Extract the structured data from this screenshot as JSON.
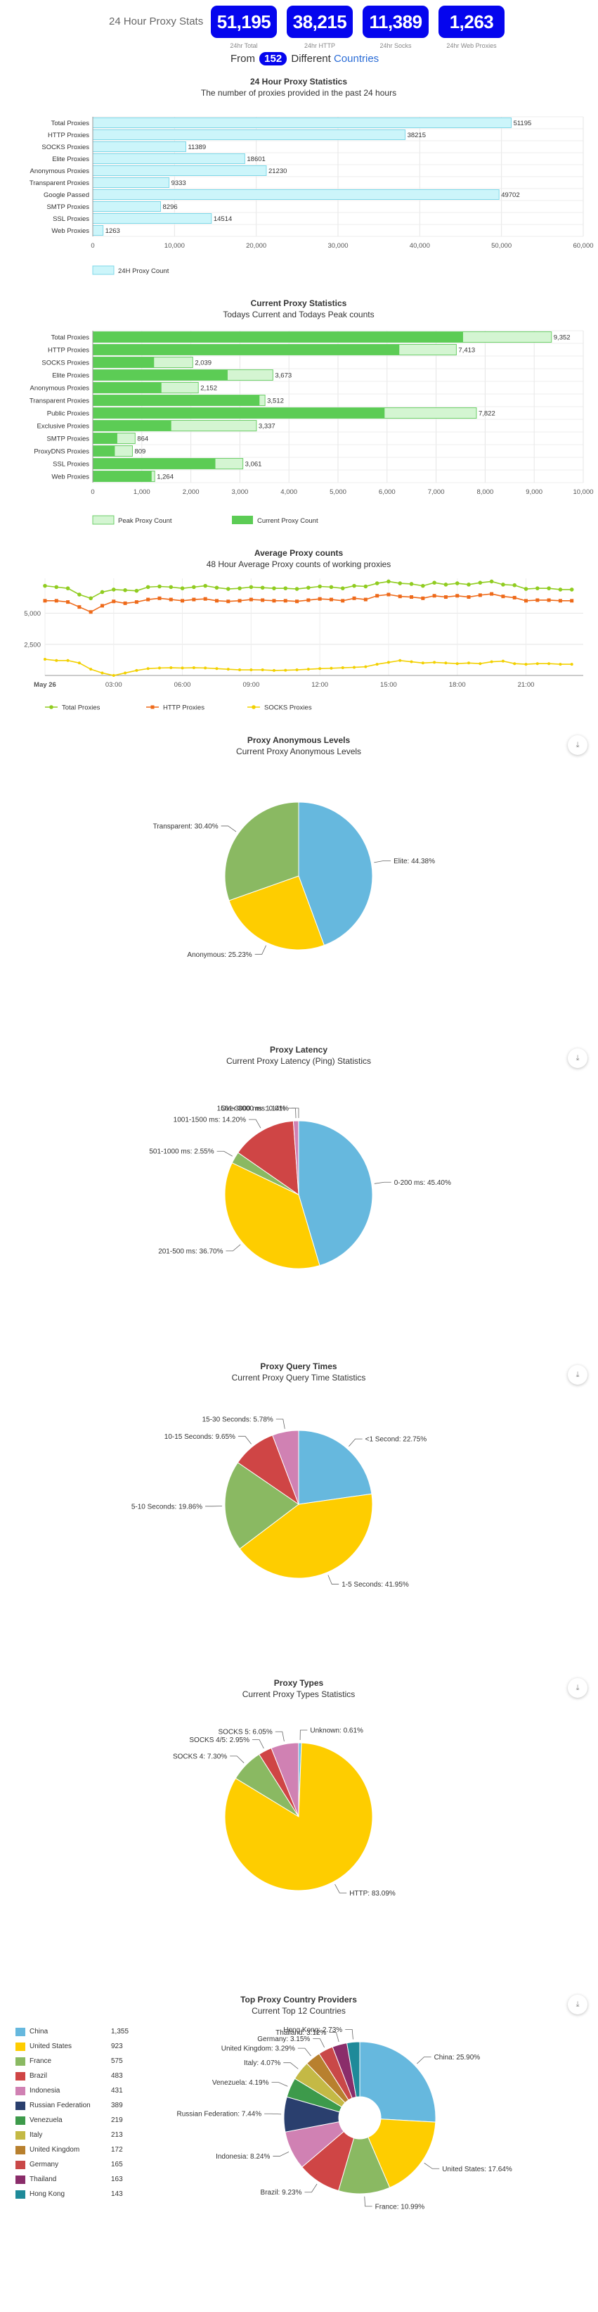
{
  "header": {
    "title": "24 Hour Proxy Stats",
    "stats": [
      {
        "value": "51,195",
        "label": "24hr Total"
      },
      {
        "value": "38,215",
        "label": "24hr HTTP"
      },
      {
        "value": "11,389",
        "label": "24hr Socks"
      },
      {
        "value": "1,263",
        "label": "24hr Web Proxies"
      }
    ],
    "from_text": "From",
    "country_count": "152",
    "different_text": "Different",
    "countries_link": "Countries"
  },
  "chart_data": [
    {
      "id": "daily",
      "type": "bar",
      "title": "24 Hour Proxy Statistics",
      "subtitle": "The number of proxies provided in the past 24 hours",
      "categories": [
        "Total Proxies",
        "HTTP Proxies",
        "SOCKS Proxies",
        "Elite Proxies",
        "Anonymous Proxies",
        "Transparent Proxies",
        "Google Passed",
        "SMTP Proxies",
        "SSL Proxies",
        "Web Proxies"
      ],
      "series": [
        {
          "name": "24H Proxy Count",
          "values": [
            51195,
            38215,
            11389,
            18601,
            21230,
            9333,
            49702,
            8296,
            14514,
            1263
          ]
        }
      ],
      "xlim": [
        0,
        60000
      ],
      "ticks": [
        "0",
        "10,000",
        "20,000",
        "30,000",
        "40,000",
        "50,000",
        "60,000"
      ],
      "value_labels": [
        "51195",
        "38215",
        "11389",
        "18601",
        "21230",
        "9333",
        "49702",
        "8296",
        "14514",
        "1263"
      ],
      "legend": "bottom-left",
      "colors": {
        "fill": "#ccf5fa",
        "stroke": "#7fd8e8"
      }
    },
    {
      "id": "current",
      "type": "bar",
      "title": "Current Proxy Statistics",
      "subtitle": "Todays Current and Todays Peak counts",
      "categories": [
        "Total Proxies",
        "HTTP Proxies",
        "SOCKS Proxies",
        "Elite Proxies",
        "Anonymous Proxies",
        "Transparent Proxies",
        "Public Proxies",
        "Exclusive Proxies",
        "SMTP Proxies",
        "ProxyDNS Proxies",
        "SSL Proxies",
        "Web Proxies"
      ],
      "series": [
        {
          "name": "Peak Proxy Count",
          "values": [
            9352,
            7413,
            2039,
            3673,
            2152,
            3512,
            7822,
            3337,
            864,
            809,
            3061,
            1264
          ]
        },
        {
          "name": "Current Proxy Count",
          "values": [
            7550,
            6250,
            1250,
            2750,
            1400,
            3400,
            5950,
            1600,
            500,
            450,
            2500,
            1200
          ]
        }
      ],
      "xlim": [
        0,
        10000
      ],
      "ticks": [
        "0",
        "1,000",
        "2,000",
        "3,000",
        "4,000",
        "5,000",
        "6,000",
        "7,000",
        "8,000",
        "9,000",
        "10,000"
      ],
      "value_labels": [
        "9,352",
        "7,413",
        "2,039",
        "3,673",
        "2,152",
        "3,512",
        "7,822",
        "3,337",
        "864",
        "809",
        "3,061",
        "1,264"
      ],
      "legend": "bottom-left",
      "colors": {
        "peak_fill": "#d4f5d2",
        "peak_stroke": "#6ecf6a",
        "current": "#5ccc55"
      }
    },
    {
      "id": "average",
      "type": "line",
      "title": "Average Proxy counts",
      "subtitle": "48 Hour Average Proxy counts of working proxies",
      "x": [
        0,
        0.5,
        1,
        1.5,
        2,
        2.5,
        3,
        3.5,
        4,
        4.5,
        5,
        5.5,
        6,
        6.5,
        7,
        7.5,
        8,
        8.5,
        9,
        9.5,
        10,
        10.5,
        11,
        11.5,
        12,
        12.5,
        13,
        13.5,
        14,
        14.5,
        15,
        15.5,
        16,
        16.5,
        17,
        17.5,
        18,
        18.5,
        19,
        19.5,
        20,
        20.5,
        21,
        21.5,
        22,
        22.5,
        23
      ],
      "series": [
        {
          "name": "Total Proxies",
          "color": "#90cc20",
          "values": [
            7200,
            7100,
            7000,
            6500,
            6200,
            6700,
            6900,
            6850,
            6800,
            7100,
            7150,
            7100,
            7000,
            7100,
            7200,
            7050,
            6950,
            7000,
            7100,
            7050,
            7000,
            7000,
            6950,
            7050,
            7150,
            7100,
            7000,
            7200,
            7150,
            7400,
            7550,
            7400,
            7350,
            7200,
            7450,
            7300,
            7400,
            7300,
            7450,
            7550,
            7300,
            7250,
            6950,
            7000,
            7000,
            6900,
            6900
          ]
        },
        {
          "name": "HTTP Proxies",
          "color": "#ee6a1a",
          "values": [
            6000,
            6000,
            5900,
            5500,
            5100,
            5600,
            5950,
            5800,
            5900,
            6100,
            6200,
            6100,
            6000,
            6100,
            6150,
            6000,
            5950,
            6000,
            6100,
            6050,
            6000,
            6000,
            5950,
            6050,
            6150,
            6100,
            6000,
            6200,
            6100,
            6400,
            6500,
            6350,
            6300,
            6200,
            6400,
            6300,
            6400,
            6300,
            6450,
            6550,
            6350,
            6250,
            6000,
            6050,
            6050,
            6000,
            6000
          ]
        },
        {
          "name": "SOCKS Proxies",
          "color": "#f2d000",
          "values": [
            1300,
            1200,
            1200,
            1000,
            500,
            200,
            0,
            200,
            400,
            550,
            600,
            620,
            600,
            620,
            600,
            550,
            500,
            450,
            450,
            450,
            400,
            420,
            450,
            500,
            550,
            580,
            620,
            650,
            700,
            900,
            1050,
            1200,
            1100,
            1000,
            1050,
            1000,
            950,
            1000,
            950,
            1100,
            1150,
            950,
            900,
            950,
            950,
            900,
            900
          ]
        }
      ],
      "ylim": [
        0,
        7800
      ],
      "yticks": [
        "2,500",
        "5,000"
      ],
      "xticks": [
        "May 26",
        "03:00",
        "06:00",
        "09:00",
        "12:00",
        "15:00",
        "18:00",
        "21:00"
      ],
      "legend": "bottom"
    },
    {
      "id": "anon",
      "type": "pie",
      "title": "Proxy Anonymous Levels",
      "subtitle": "Current Proxy Anonymous Levels",
      "slices": [
        {
          "label": "Elite",
          "value": 44.38,
          "text": "Elite: 44.38%",
          "color": "#66b8de"
        },
        {
          "label": "Anonymous",
          "value": 25.23,
          "text": "Anonymous: 25.23%",
          "color": "#fecd00"
        },
        {
          "label": "Transparent",
          "value": 30.4,
          "text": "Transparent: 30.40%",
          "color": "#8ab962"
        }
      ]
    },
    {
      "id": "latency",
      "type": "pie",
      "title": "Proxy Latency",
      "subtitle": "Current Proxy Latency (Ping) Statistics",
      "slices": [
        {
          "label": "0-200 ms",
          "value": 45.4,
          "text": "0-200 ms: 45.40%",
          "color": "#66b8de"
        },
        {
          "label": "201-500 ms",
          "value": 36.7,
          "text": "201-500 ms: 36.70%",
          "color": "#fecd00"
        },
        {
          "label": "501-1000 ms",
          "value": 2.55,
          "text": "501-1000 ms: 2.55%",
          "color": "#8ab962"
        },
        {
          "label": "1001-1500 ms",
          "value": 14.2,
          "text": "1001-1500 ms: 14.20%",
          "color": "#cf4545"
        },
        {
          "label": "1501-3000 ms",
          "value": 1.14,
          "text": "1501-3000 ms: 1.14%",
          "color": "#d081b3"
        },
        {
          "label": "Over 3000 ms",
          "value": 0.01,
          "text": "Over 3000 ms: 0.01%",
          "color": "#2a3f6e"
        }
      ]
    },
    {
      "id": "query",
      "type": "pie",
      "title": "Proxy Query Times",
      "subtitle": "Current Proxy Query Time Statistics",
      "slices": [
        {
          "label": "<1 Second",
          "value": 22.75,
          "text": "<1 Second: 22.75%",
          "color": "#66b8de"
        },
        {
          "label": "1-5 Seconds",
          "value": 41.95,
          "text": "1-5 Seconds: 41.95%",
          "color": "#fecd00"
        },
        {
          "label": "5-10 Seconds",
          "value": 19.86,
          "text": "5-10 Seconds: 19.86%",
          "color": "#8ab962"
        },
        {
          "label": "10-15 Seconds",
          "value": 9.65,
          "text": "10-15 Seconds: 9.65%",
          "color": "#cf4545"
        },
        {
          "label": "15-30 Seconds",
          "value": 5.78,
          "text": "15-30 Seconds: 5.78%",
          "color": "#d081b3"
        }
      ]
    },
    {
      "id": "types",
      "type": "pie",
      "title": "Proxy Types",
      "subtitle": "Current Proxy Types Statistics",
      "slices": [
        {
          "label": "Unknown",
          "value": 0.61,
          "text": "Unknown: 0.61%",
          "color": "#66b8de"
        },
        {
          "label": "HTTP",
          "value": 83.09,
          "text": "HTTP: 83.09%",
          "color": "#fecd00"
        },
        {
          "label": "SOCKS 4",
          "value": 7.3,
          "text": "SOCKS 4: 7.30%",
          "color": "#8ab962"
        },
        {
          "label": "SOCKS 4/5",
          "value": 2.95,
          "text": "SOCKS 4/5: 2.95%",
          "color": "#cf4545"
        },
        {
          "label": "SOCKS 5",
          "value": 6.05,
          "text": "SOCKS 5: 6.05%",
          "color": "#d081b3"
        }
      ]
    },
    {
      "id": "countries",
      "type": "pie",
      "title": "Top Proxy Country Providers",
      "subtitle": "Current Top 12 Countries",
      "slices": [
        {
          "label": "China",
          "value": 25.9,
          "count": "1,355",
          "text": "China: 25.90%",
          "color": "#66b8de"
        },
        {
          "label": "United States",
          "value": 17.64,
          "count": "923",
          "text": "United States: 17.64%",
          "color": "#fecd00"
        },
        {
          "label": "France",
          "value": 10.99,
          "count": "575",
          "text": "France: 10.99%",
          "color": "#8ab962"
        },
        {
          "label": "Brazil",
          "value": 9.23,
          "count": "483",
          "text": "Brazil: 9.23%",
          "color": "#cf4545"
        },
        {
          "label": "Indonesia",
          "value": 8.24,
          "count": "431",
          "text": "Indonesia: 8.24%",
          "color": "#d081b3"
        },
        {
          "label": "Russian Federation",
          "value": 7.44,
          "count": "389",
          "text": "Russian Federation: 7.44%",
          "color": "#2a3f6e"
        },
        {
          "label": "Venezuela",
          "value": 4.19,
          "count": "219",
          "text": "Venezuela: 4.19%",
          "color": "#3d9a4b"
        },
        {
          "label": "Italy",
          "value": 4.07,
          "count": "213",
          "text": "Italy: 4.07%",
          "color": "#c4b945"
        },
        {
          "label": "United Kingdom",
          "value": 3.29,
          "count": "172",
          "text": "United Kingdom: 3.29%",
          "color": "#b8802e"
        },
        {
          "label": "Germany",
          "value": 3.15,
          "count": "165",
          "text": "Germany: 3.15%",
          "color": "#c94848"
        },
        {
          "label": "Thailand",
          "value": 3.12,
          "count": "163",
          "text": "Thailand: 3.12%",
          "color": "#8a2d6a"
        },
        {
          "label": "Hong Kong",
          "value": 2.73,
          "count": "143",
          "text": "Hong Kong: 2.73%",
          "color": "#1e8a99"
        }
      ]
    }
  ],
  "icons": {
    "download": "download-icon"
  }
}
